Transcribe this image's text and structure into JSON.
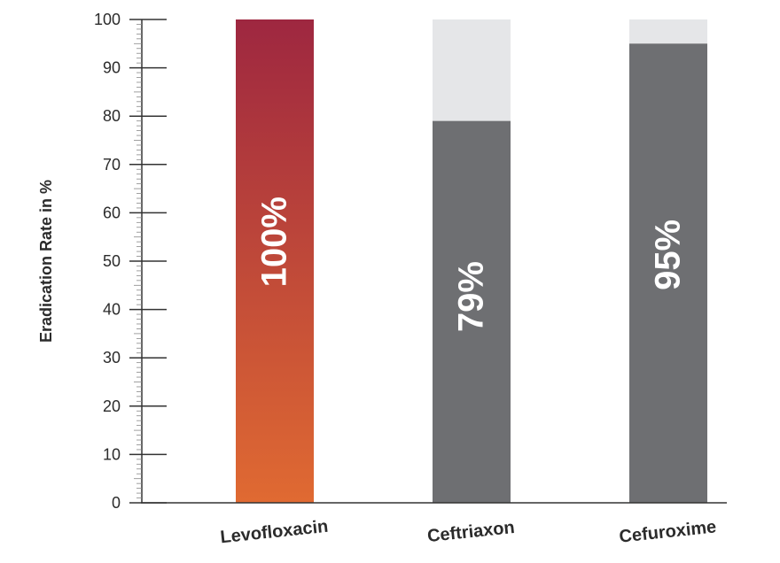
{
  "chart_data": {
    "type": "bar",
    "ylabel": "Eradication Rate in %",
    "xlabel": "",
    "ylim": [
      0,
      100
    ],
    "yticks": [
      0,
      10,
      20,
      30,
      40,
      50,
      60,
      70,
      80,
      90,
      100
    ],
    "grid": false,
    "categories": [
      "Levofloxacin",
      "Ceftriaxon",
      "Cefuroxime"
    ],
    "values": [
      100,
      79,
      95
    ],
    "value_labels": [
      "100%",
      "79%",
      "95%"
    ],
    "colors": {
      "levofloxacin_top": "#9e2740",
      "levofloxacin_bottom": "#e06a32",
      "comparator": "#6e6f72",
      "background_bar": "#e5e6e8",
      "axis": "#333333"
    }
  }
}
